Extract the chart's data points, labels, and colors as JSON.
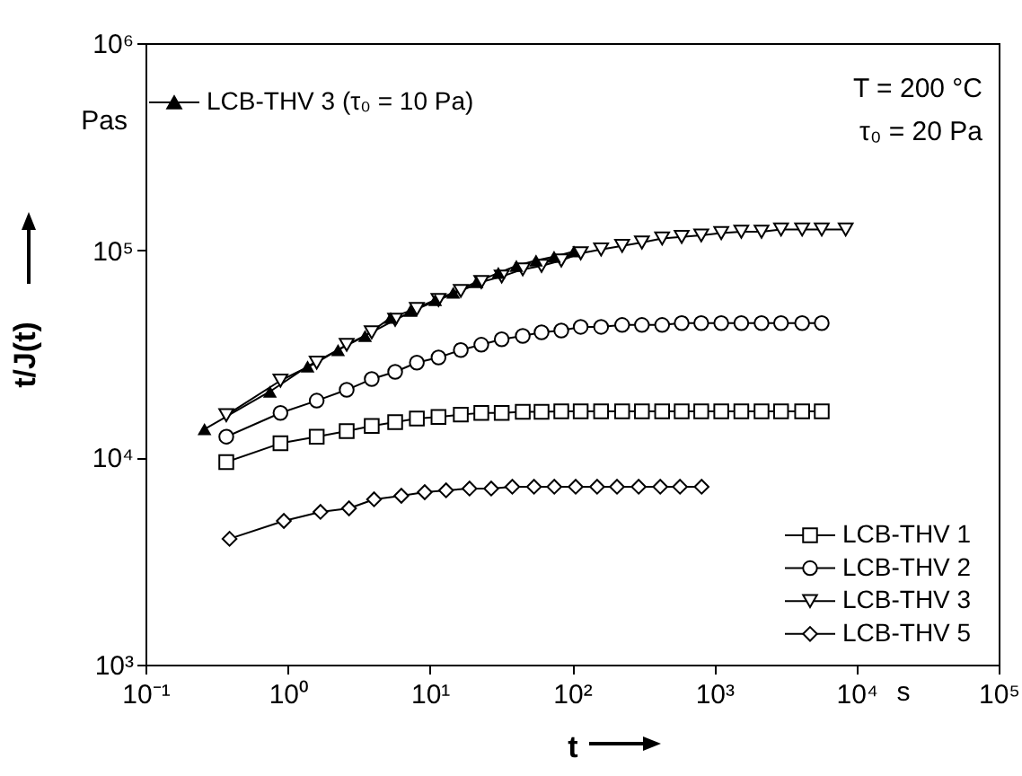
{
  "chart_data": {
    "type": "line",
    "xlabel": "t",
    "ylabel": "t/J(t)",
    "log": "xy",
    "legend": "bottom right",
    "grid": false,
    "xlim": [
      0.1,
      100000
    ],
    "ylim": [
      1000,
      1000000
    ],
    "xticks": [
      {
        "value": 0.1,
        "label": "10⁻¹"
      },
      {
        "value": 1,
        "label": "10⁰"
      },
      {
        "value": 10,
        "label": "10¹"
      },
      {
        "value": 100,
        "label": "10²"
      },
      {
        "value": 1000,
        "label": "10³"
      },
      {
        "value": 10000,
        "label": "10⁴"
      },
      {
        "value": 100000,
        "label": "10⁵"
      }
    ],
    "yticks": [
      {
        "value": 1000,
        "label": "10³"
      },
      {
        "value": 10000,
        "label": "10⁴"
      },
      {
        "value": 100000,
        "label": "10⁵"
      },
      {
        "value": 1000000,
        "label": "10⁶"
      }
    ],
    "annotations": [
      "Pas",
      "s",
      "T = 200 °C",
      "τ₀ = 20 Pa"
    ],
    "series": [
      {
        "name": "LCB-THV 1",
        "color": "#000000",
        "marker": "square",
        "x": [
          0.37,
          0.89,
          1.6,
          2.6,
          3.9,
          5.7,
          8.1,
          11.5,
          16.5,
          23,
          32,
          45,
          61,
          84,
          115,
          160,
          225,
          310,
          430,
          590,
          810,
          1120,
          1550,
          2150,
          2950,
          4150,
          5700
        ],
        "values": [
          9500,
          11700,
          12600,
          13400,
          14200,
          14800,
          15400,
          15700,
          16100,
          16400,
          16400,
          16600,
          16600,
          16700,
          16700,
          16700,
          16700,
          16700,
          16700,
          16700,
          16700,
          16700,
          16700,
          16700,
          16700,
          16700,
          16700
        ]
      },
      {
        "name": "LCB-THV 2",
        "color": "#000000",
        "marker": "circle",
        "x": [
          0.37,
          0.89,
          1.6,
          2.6,
          3.9,
          5.7,
          8.1,
          11.5,
          16.5,
          23,
          32,
          45,
          61,
          84,
          115,
          160,
          225,
          310,
          430,
          590,
          810,
          1120,
          1550,
          2150,
          2950,
          4150,
          5700
        ],
        "values": [
          12600,
          16400,
          18800,
          21200,
          23900,
          25900,
          28700,
          30400,
          33000,
          35000,
          37200,
          38600,
          40200,
          41000,
          42700,
          42700,
          43600,
          43600,
          43600,
          44500,
          44500,
          44500,
          44500,
          44500,
          44500,
          44500,
          44500
        ]
      },
      {
        "name": "LCB-THV 3",
        "color": "#000000",
        "marker": "triangle-down",
        "x": [
          0.37,
          0.89,
          1.6,
          2.6,
          3.9,
          5.7,
          8.1,
          11.5,
          16.5,
          23,
          32,
          45,
          61,
          84,
          115,
          160,
          225,
          310,
          430,
          590,
          810,
          1120,
          1550,
          2150,
          2950,
          4150,
          5700,
          8400
        ],
        "values": [
          16000,
          23500,
          28700,
          35000,
          40200,
          46200,
          52100,
          57600,
          63700,
          70300,
          74700,
          80900,
          84100,
          89300,
          96800,
          101000,
          105000,
          109000,
          114000,
          116000,
          118000,
          121000,
          123000,
          123000,
          126000,
          126000,
          126000,
          126000
        ]
      },
      {
        "name": "LCB-THV 5",
        "color": "#000000",
        "marker": "diamond",
        "x": [
          0.39,
          0.94,
          1.7,
          2.7,
          4.05,
          6.3,
          9.2,
          13,
          19,
          27,
          38,
          54,
          75,
          106,
          150,
          207,
          294,
          417,
          574,
          815
        ],
        "values": [
          4050,
          4940,
          5460,
          5680,
          6280,
          6530,
          6800,
          6940,
          7080,
          7080,
          7220,
          7220,
          7220,
          7220,
          7220,
          7220,
          7220,
          7220,
          7220,
          7220
        ]
      },
      {
        "name": "LCB-THV 3  (τ₀ = 10 Pa)",
        "color": "#000000",
        "marker": "triangle",
        "x": [
          0.26,
          0.75,
          1.38,
          2.26,
          3.5,
          5.3,
          7.3,
          10.9,
          14.6,
          21.3,
          30.3,
          40.6,
          55.8,
          74.7,
          103
        ],
        "values": [
          13700,
          20800,
          27500,
          33000,
          38600,
          47200,
          51100,
          57600,
          62400,
          70300,
          77800,
          84100,
          89300,
          93100,
          98800
        ]
      }
    ]
  }
}
